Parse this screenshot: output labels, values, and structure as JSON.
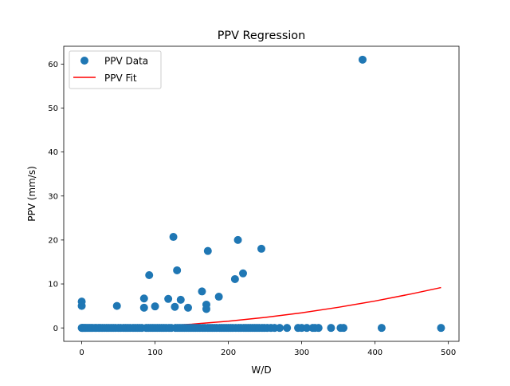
{
  "chart_data": {
    "type": "scatter",
    "title": "PPV Regression",
    "xlabel": "W/D",
    "ylabel": "PPV (mm/s)",
    "xlim": [
      -24.5,
      514.5
    ],
    "ylim": [
      -3.05,
      64.05
    ],
    "xticks": [
      0,
      100,
      200,
      300,
      400,
      500
    ],
    "yticks": [
      0,
      10,
      20,
      30,
      40,
      50,
      60
    ],
    "grid": false,
    "legend_position": "top-left",
    "series": [
      {
        "name": "PPV Data",
        "kind": "scatter",
        "color": "#1f77b4",
        "points": [
          [
            0,
            6.0
          ],
          [
            0,
            5.0
          ],
          [
            0,
            0
          ],
          [
            1,
            0
          ],
          [
            2,
            0
          ],
          [
            4,
            0
          ],
          [
            5,
            0
          ],
          [
            7,
            0
          ],
          [
            9,
            0
          ],
          [
            11,
            0
          ],
          [
            13,
            0
          ],
          [
            15,
            0
          ],
          [
            18,
            0
          ],
          [
            20,
            0
          ],
          [
            23,
            0
          ],
          [
            25,
            0
          ],
          [
            28,
            0
          ],
          [
            31,
            0
          ],
          [
            34,
            0
          ],
          [
            37,
            0
          ],
          [
            40,
            0
          ],
          [
            43,
            0
          ],
          [
            46,
            0
          ],
          [
            48,
            5.0
          ],
          [
            50,
            0
          ],
          [
            53,
            0
          ],
          [
            57,
            0
          ],
          [
            60,
            0
          ],
          [
            63,
            0
          ],
          [
            66,
            0
          ],
          [
            70,
            0
          ],
          [
            73,
            0
          ],
          [
            76,
            0
          ],
          [
            79,
            0
          ],
          [
            82,
            0
          ],
          [
            85,
            4.6
          ],
          [
            85,
            6.7
          ],
          [
            88,
            0
          ],
          [
            91,
            0
          ],
          [
            92,
            12.0
          ],
          [
            94,
            0
          ],
          [
            97,
            0
          ],
          [
            100,
            4.9
          ],
          [
            100,
            0
          ],
          [
            103,
            0
          ],
          [
            106,
            0
          ],
          [
            109,
            0
          ],
          [
            112,
            0
          ],
          [
            115,
            0
          ],
          [
            118,
            6.6
          ],
          [
            119,
            0
          ],
          [
            122,
            0
          ],
          [
            125,
            20.7
          ],
          [
            127,
            4.8
          ],
          [
            128,
            0
          ],
          [
            130,
            13.1
          ],
          [
            131,
            0
          ],
          [
            134,
            0
          ],
          [
            135,
            6.4
          ],
          [
            137,
            0
          ],
          [
            140,
            0
          ],
          [
            143,
            0
          ],
          [
            145,
            4.6
          ],
          [
            146,
            0
          ],
          [
            149,
            0
          ],
          [
            152,
            0
          ],
          [
            155,
            0
          ],
          [
            158,
            0
          ],
          [
            161,
            0
          ],
          [
            164,
            8.3
          ],
          [
            165,
            0
          ],
          [
            168,
            0
          ],
          [
            170,
            5.3
          ],
          [
            170,
            4.3
          ],
          [
            172,
            17.5
          ],
          [
            172,
            0
          ],
          [
            175,
            0
          ],
          [
            178,
            0
          ],
          [
            181,
            0
          ],
          [
            184,
            0
          ],
          [
            187,
            7.1
          ],
          [
            188,
            0
          ],
          [
            191,
            0
          ],
          [
            194,
            0
          ],
          [
            197,
            0
          ],
          [
            200,
            0
          ],
          [
            203,
            0
          ],
          [
            206,
            0
          ],
          [
            209,
            11.1
          ],
          [
            210,
            0
          ],
          [
            213,
            20.0
          ],
          [
            214,
            0
          ],
          [
            217,
            0
          ],
          [
            220,
            12.4
          ],
          [
            221,
            0
          ],
          [
            224,
            0
          ],
          [
            227,
            0
          ],
          [
            230,
            0
          ],
          [
            233,
            0
          ],
          [
            236,
            0
          ],
          [
            239,
            0
          ],
          [
            242,
            0
          ],
          [
            245,
            18.0
          ],
          [
            246,
            0
          ],
          [
            249,
            0
          ],
          [
            253,
            0
          ],
          [
            258,
            0
          ],
          [
            263,
            0
          ],
          [
            270,
            0
          ],
          [
            280,
            0
          ],
          [
            295,
            0
          ],
          [
            300,
            0
          ],
          [
            307,
            0
          ],
          [
            315,
            0
          ],
          [
            318,
            0
          ],
          [
            323,
            0
          ],
          [
            340,
            0
          ],
          [
            353,
            0
          ],
          [
            357,
            0
          ],
          [
            383,
            61.0
          ],
          [
            409,
            0
          ],
          [
            490,
            0
          ]
        ]
      },
      {
        "name": "PPV Fit",
        "kind": "line",
        "color": "#ff0000",
        "points": [
          [
            0,
            0.0
          ],
          [
            50,
            0.1
          ],
          [
            100,
            0.38
          ],
          [
            150,
            0.86
          ],
          [
            200,
            1.53
          ],
          [
            250,
            2.39
          ],
          [
            300,
            3.44
          ],
          [
            350,
            4.69
          ],
          [
            400,
            6.12
          ],
          [
            450,
            7.75
          ],
          [
            490,
            9.18
          ]
        ]
      }
    ]
  }
}
